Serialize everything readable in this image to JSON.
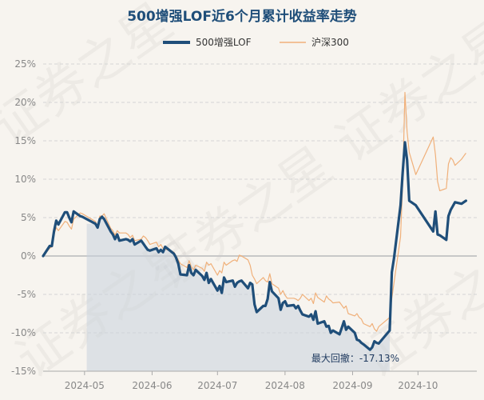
{
  "chart_data": {
    "type": "line",
    "title": "500增强LOF近6个月累计收益率走势",
    "legend_position": "top-center",
    "grid": true,
    "ylim": [
      -15,
      25
    ],
    "y_ticks": [
      25,
      20,
      15,
      10,
      5,
      0,
      -5,
      -10,
      -15
    ],
    "y_tick_labels": [
      "25%",
      "20%",
      "15%",
      "10%",
      "5%",
      "0%",
      "-5%",
      "-10%",
      "-15%"
    ],
    "x_ticks": [
      {
        "date": "2024-05-01",
        "label": "2024-05"
      },
      {
        "date": "2024-06-01",
        "label": "2024-06"
      },
      {
        "date": "2024-07-01",
        "label": "2024-07"
      },
      {
        "date": "2024-08-01",
        "label": "2024-08"
      },
      {
        "date": "2024-09-01",
        "label": "2024-09"
      },
      {
        "date": "2024-10-01",
        "label": "2024-10"
      }
    ],
    "xlim": [
      "2024-04-12",
      "2024-10-28"
    ],
    "colors": {
      "fund": "#1f4e79",
      "index": "#f0b07a",
      "drawdown_fill": "#c9d2dc"
    },
    "drawdown": {
      "start": "2024-05-02",
      "end": "2024-09-18",
      "value": -17.13,
      "label": "最大回撤：-17.13%"
    },
    "watermark": "证券之星",
    "series": [
      {
        "name": "500增强LOF",
        "points": [
          [
            "2024-04-12",
            0.0
          ],
          [
            "2024-04-15",
            1.3
          ],
          [
            "2024-04-16",
            1.3
          ],
          [
            "2024-04-17",
            3.2
          ],
          [
            "2024-04-18",
            4.6
          ],
          [
            "2024-04-19",
            4.1
          ],
          [
            "2024-04-22",
            5.7
          ],
          [
            "2024-04-23",
            5.7
          ],
          [
            "2024-04-24",
            5.0
          ],
          [
            "2024-04-25",
            4.4
          ],
          [
            "2024-04-26",
            5.8
          ],
          [
            "2024-04-29",
            5.2
          ],
          [
            "2024-04-30",
            5.1
          ],
          [
            "2024-05-06",
            4.2
          ],
          [
            "2024-05-07",
            3.7
          ],
          [
            "2024-05-08",
            4.8
          ],
          [
            "2024-05-09",
            5.1
          ],
          [
            "2024-05-10",
            4.8
          ],
          [
            "2024-05-13",
            3.2
          ],
          [
            "2024-05-14",
            2.8
          ],
          [
            "2024-05-15",
            2.2
          ],
          [
            "2024-05-16",
            2.8
          ],
          [
            "2024-05-17",
            2.0
          ],
          [
            "2024-05-20",
            2.2
          ],
          [
            "2024-05-21",
            2.1
          ],
          [
            "2024-05-22",
            1.9
          ],
          [
            "2024-05-23",
            2.2
          ],
          [
            "2024-05-24",
            1.5
          ],
          [
            "2024-05-27",
            2.0
          ],
          [
            "2024-05-28",
            1.6
          ],
          [
            "2024-05-29",
            1.2
          ],
          [
            "2024-05-30",
            0.8
          ],
          [
            "2024-05-31",
            0.7
          ],
          [
            "2024-06-03",
            1.0
          ],
          [
            "2024-06-04",
            0.5
          ],
          [
            "2024-06-05",
            0.8
          ],
          [
            "2024-06-06",
            0.5
          ],
          [
            "2024-06-07",
            1.2
          ],
          [
            "2024-06-11",
            0.3
          ],
          [
            "2024-06-12",
            -0.2
          ],
          [
            "2024-06-13",
            -1.0
          ],
          [
            "2024-06-14",
            -2.4
          ],
          [
            "2024-06-17",
            -2.5
          ],
          [
            "2024-06-18",
            -1.2
          ],
          [
            "2024-06-19",
            -2.2
          ],
          [
            "2024-06-20",
            -2.5
          ],
          [
            "2024-06-21",
            -1.8
          ],
          [
            "2024-06-24",
            -2.6
          ],
          [
            "2024-06-25",
            -3.1
          ],
          [
            "2024-06-26",
            -2.2
          ],
          [
            "2024-06-27",
            -3.5
          ],
          [
            "2024-06-28",
            -3.0
          ],
          [
            "2024-07-01",
            -4.5
          ],
          [
            "2024-07-02",
            -3.9
          ],
          [
            "2024-07-03",
            -4.8
          ],
          [
            "2024-07-04",
            -2.8
          ],
          [
            "2024-07-05",
            -3.4
          ],
          [
            "2024-07-08",
            -3.2
          ],
          [
            "2024-07-09",
            -4.0
          ],
          [
            "2024-07-10",
            -3.5
          ],
          [
            "2024-07-11",
            -3.3
          ],
          [
            "2024-07-12",
            -3.2
          ],
          [
            "2024-07-15",
            -4.2
          ],
          [
            "2024-07-16",
            -3.5
          ],
          [
            "2024-07-17",
            -3.7
          ],
          [
            "2024-07-18",
            -6.3
          ],
          [
            "2024-07-19",
            -7.3
          ],
          [
            "2024-07-22",
            -6.5
          ],
          [
            "2024-07-23",
            -6.5
          ],
          [
            "2024-07-24",
            -5.6
          ],
          [
            "2024-07-25",
            -3.4
          ],
          [
            "2024-07-26",
            -4.6
          ],
          [
            "2024-07-29",
            -5.5
          ],
          [
            "2024-07-30",
            -7.0
          ],
          [
            "2024-07-31",
            -6.1
          ],
          [
            "2024-08-01",
            -5.9
          ],
          [
            "2024-08-02",
            -6.5
          ],
          [
            "2024-08-05",
            -6.4
          ],
          [
            "2024-08-06",
            -6.8
          ],
          [
            "2024-08-07",
            -6.5
          ],
          [
            "2024-08-08",
            -7.1
          ],
          [
            "2024-08-09",
            -7.6
          ],
          [
            "2024-08-12",
            -7.9
          ],
          [
            "2024-08-13",
            -7.6
          ],
          [
            "2024-08-14",
            -8.3
          ],
          [
            "2024-08-15",
            -7.2
          ],
          [
            "2024-08-16",
            -8.8
          ],
          [
            "2024-08-19",
            -8.5
          ],
          [
            "2024-08-20",
            -9.2
          ],
          [
            "2024-08-21",
            -9.1
          ],
          [
            "2024-08-22",
            -10.0
          ],
          [
            "2024-08-23",
            -9.7
          ],
          [
            "2024-08-26",
            -10.2
          ],
          [
            "2024-08-27",
            -9.4
          ],
          [
            "2024-08-28",
            -8.5
          ],
          [
            "2024-08-29",
            -9.6
          ],
          [
            "2024-08-30",
            -9.2
          ],
          [
            "2024-09-02",
            -10.0
          ],
          [
            "2024-09-03",
            -10.9
          ],
          [
            "2024-09-04",
            -11.0
          ],
          [
            "2024-09-05",
            -11.3
          ],
          [
            "2024-09-06",
            -11.5
          ],
          [
            "2024-09-09",
            -12.2
          ],
          [
            "2024-09-10",
            -11.9
          ],
          [
            "2024-09-11",
            -11.1
          ],
          [
            "2024-09-12",
            -11.3
          ],
          [
            "2024-09-13",
            -11.4
          ],
          [
            "2024-09-18",
            -9.7
          ],
          [
            "2024-09-19",
            -2.1
          ],
          [
            "2024-09-20",
            -0.3
          ],
          [
            "2024-09-23",
            6.6
          ],
          [
            "2024-09-24",
            10.9
          ],
          [
            "2024-09-25",
            14.8
          ],
          [
            "2024-09-26",
            12.5
          ],
          [
            "2024-09-27",
            7.2
          ],
          [
            "2024-09-30",
            6.6
          ],
          [
            "2024-10-08",
            3.2
          ],
          [
            "2024-10-09",
            5.8
          ],
          [
            "2024-10-10",
            2.8
          ],
          [
            "2024-10-11",
            2.7
          ],
          [
            "2024-10-14",
            2.1
          ],
          [
            "2024-10-15",
            5.2
          ],
          [
            "2024-10-16",
            6.0
          ],
          [
            "2024-10-17",
            6.5
          ],
          [
            "2024-10-18",
            7.0
          ],
          [
            "2024-10-21",
            6.8
          ],
          [
            "2024-10-22",
            7.0
          ],
          [
            "2024-10-23",
            7.2
          ]
        ]
      },
      {
        "name": "沪深300",
        "points": [
          [
            "2024-04-12",
            0.0
          ],
          [
            "2024-04-15",
            1.0
          ],
          [
            "2024-04-16",
            1.2
          ],
          [
            "2024-04-17",
            2.8
          ],
          [
            "2024-04-18",
            3.7
          ],
          [
            "2024-04-19",
            3.3
          ],
          [
            "2024-04-22",
            4.5
          ],
          [
            "2024-04-23",
            4.4
          ],
          [
            "2024-04-24",
            3.9
          ],
          [
            "2024-04-25",
            3.5
          ],
          [
            "2024-04-26",
            4.8
          ],
          [
            "2024-04-29",
            5.6
          ],
          [
            "2024-04-30",
            5.5
          ],
          [
            "2024-05-06",
            4.5
          ],
          [
            "2024-05-07",
            3.9
          ],
          [
            "2024-05-08",
            5.2
          ],
          [
            "2024-05-09",
            5.2
          ],
          [
            "2024-05-10",
            5.5
          ],
          [
            "2024-05-13",
            3.6
          ],
          [
            "2024-05-14",
            3.3
          ],
          [
            "2024-05-15",
            2.7
          ],
          [
            "2024-05-16",
            3.3
          ],
          [
            "2024-05-17",
            3.0
          ],
          [
            "2024-05-20",
            3.0
          ],
          [
            "2024-05-21",
            2.8
          ],
          [
            "2024-05-22",
            2.4
          ],
          [
            "2024-05-23",
            2.7
          ],
          [
            "2024-05-24",
            2.0
          ],
          [
            "2024-05-27",
            2.2
          ],
          [
            "2024-05-28",
            2.6
          ],
          [
            "2024-05-29",
            2.4
          ],
          [
            "2024-05-30",
            2.0
          ],
          [
            "2024-05-31",
            1.5
          ],
          [
            "2024-06-03",
            1.8
          ],
          [
            "2024-06-04",
            1.2
          ],
          [
            "2024-06-05",
            1.5
          ],
          [
            "2024-06-06",
            1.0
          ],
          [
            "2024-06-07",
            0.9
          ],
          [
            "2024-06-11",
            0.5
          ],
          [
            "2024-06-12",
            0.0
          ],
          [
            "2024-06-13",
            -0.5
          ],
          [
            "2024-06-14",
            -1.0
          ],
          [
            "2024-06-17",
            -1.5
          ],
          [
            "2024-06-18",
            -0.6
          ],
          [
            "2024-06-19",
            -1.4
          ],
          [
            "2024-06-20",
            -1.8
          ],
          [
            "2024-06-21",
            -1.2
          ],
          [
            "2024-06-24",
            -1.6
          ],
          [
            "2024-06-25",
            -2.0
          ],
          [
            "2024-06-26",
            -0.8
          ],
          [
            "2024-06-27",
            -1.2
          ],
          [
            "2024-06-28",
            -1.0
          ],
          [
            "2024-07-01",
            -2.5
          ],
          [
            "2024-07-02",
            -1.9
          ],
          [
            "2024-07-03",
            -2.2
          ],
          [
            "2024-07-04",
            -0.8
          ],
          [
            "2024-07-05",
            -1.2
          ],
          [
            "2024-07-08",
            -0.6
          ],
          [
            "2024-07-09",
            -0.5
          ],
          [
            "2024-07-10",
            -0.7
          ],
          [
            "2024-07-11",
            0.1
          ],
          [
            "2024-07-12",
            0.0
          ],
          [
            "2024-07-15",
            -0.5
          ],
          [
            "2024-07-16",
            -1.2
          ],
          [
            "2024-07-17",
            -2.5
          ],
          [
            "2024-07-18",
            -3.0
          ],
          [
            "2024-07-19",
            -3.6
          ],
          [
            "2024-07-22",
            -2.8
          ],
          [
            "2024-07-23",
            -3.2
          ],
          [
            "2024-07-24",
            -3.4
          ],
          [
            "2024-07-25",
            -2.3
          ],
          [
            "2024-07-26",
            -3.6
          ],
          [
            "2024-07-29",
            -4.2
          ],
          [
            "2024-07-30",
            -5.0
          ],
          [
            "2024-07-31",
            -4.5
          ],
          [
            "2024-08-01",
            -5.1
          ],
          [
            "2024-08-02",
            -5.5
          ],
          [
            "2024-08-05",
            -5.5
          ],
          [
            "2024-08-06",
            -5.6
          ],
          [
            "2024-08-07",
            -5.8
          ],
          [
            "2024-08-08",
            -5.5
          ],
          [
            "2024-08-09",
            -5.0
          ],
          [
            "2024-08-12",
            -5.8
          ],
          [
            "2024-08-13",
            -5.5
          ],
          [
            "2024-08-14",
            -6.2
          ],
          [
            "2024-08-15",
            -4.8
          ],
          [
            "2024-08-16",
            -5.4
          ],
          [
            "2024-08-19",
            -6.0
          ],
          [
            "2024-08-20",
            -5.2
          ],
          [
            "2024-08-21",
            -5.6
          ],
          [
            "2024-08-22",
            -5.8
          ],
          [
            "2024-08-23",
            -6.1
          ],
          [
            "2024-08-26",
            -6.0
          ],
          [
            "2024-08-27",
            -6.4
          ],
          [
            "2024-08-28",
            -6.8
          ],
          [
            "2024-08-29",
            -6.5
          ],
          [
            "2024-08-30",
            -7.5
          ],
          [
            "2024-09-02",
            -7.8
          ],
          [
            "2024-09-03",
            -7.5
          ],
          [
            "2024-09-04",
            -8.0
          ],
          [
            "2024-09-05",
            -8.2
          ],
          [
            "2024-09-06",
            -8.8
          ],
          [
            "2024-09-09",
            -9.2
          ],
          [
            "2024-09-10",
            -8.8
          ],
          [
            "2024-09-11",
            -9.5
          ],
          [
            "2024-09-12",
            -9.8
          ],
          [
            "2024-09-13",
            -9.2
          ],
          [
            "2024-09-18",
            -8.0
          ],
          [
            "2024-09-19",
            -5.5
          ],
          [
            "2024-09-20",
            -3.5
          ],
          [
            "2024-09-23",
            2.5
          ],
          [
            "2024-09-24",
            9.5
          ],
          [
            "2024-09-25",
            21.3
          ],
          [
            "2024-09-26",
            16.2
          ],
          [
            "2024-09-27",
            13.5
          ],
          [
            "2024-09-30",
            10.6
          ],
          [
            "2024-10-08",
            15.5
          ],
          [
            "2024-10-09",
            13.2
          ],
          [
            "2024-10-10",
            9.7
          ],
          [
            "2024-10-11",
            8.5
          ],
          [
            "2024-10-14",
            8.8
          ],
          [
            "2024-10-15",
            12.0
          ],
          [
            "2024-10-16",
            12.8
          ],
          [
            "2024-10-17",
            12.5
          ],
          [
            "2024-10-18",
            11.8
          ],
          [
            "2024-10-21",
            12.6
          ],
          [
            "2024-10-22",
            13.0
          ],
          [
            "2024-10-23",
            13.4
          ]
        ]
      }
    ]
  }
}
